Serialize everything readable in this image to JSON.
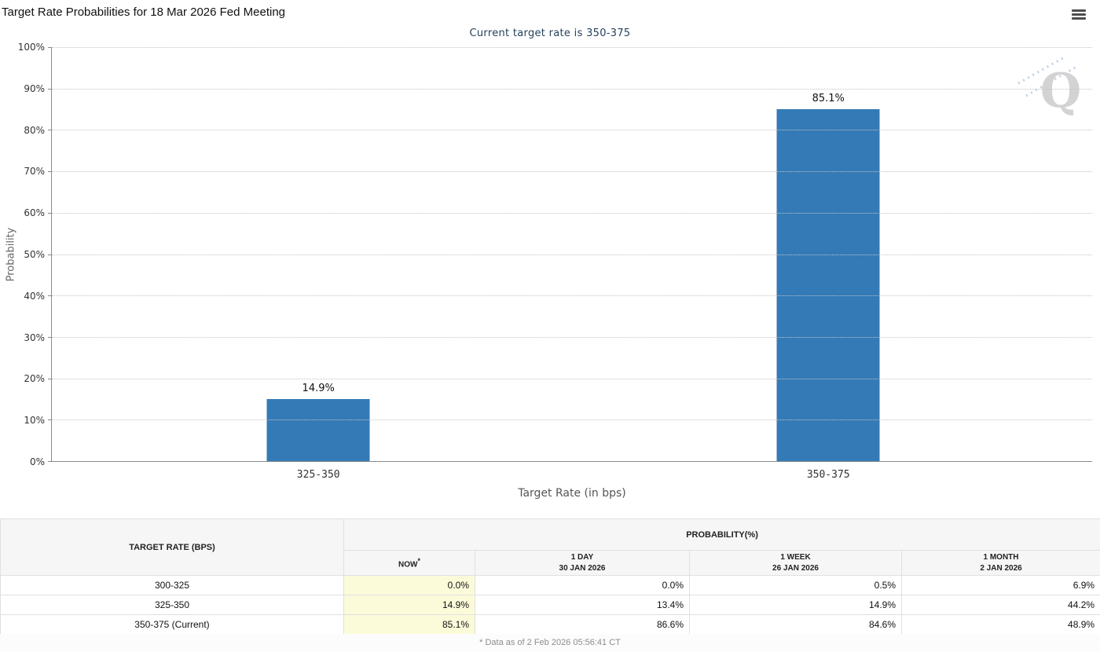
{
  "header": {
    "title": "Target Rate Probabilities for 18 Mar 2026 Fed Meeting"
  },
  "icons": {
    "menu": "hamburger-menu-icon",
    "watermark": "quikstrike-q-logo"
  },
  "chart_data": {
    "type": "bar",
    "title": "Target Rate Probabilities for 18 Mar 2026 Fed Meeting",
    "subtitle": "Current target rate is 350-375",
    "categories": [
      "325-350",
      "350-375"
    ],
    "values": [
      14.9,
      85.1
    ],
    "value_labels": [
      "14.9%",
      "85.1%"
    ],
    "xlabel": "Target Rate (in bps)",
    "ylabel": "Probability",
    "ylim": [
      0,
      100
    ],
    "ytick_labels": [
      "100%",
      "90%",
      "80%",
      "70%",
      "60%",
      "50%",
      "40%",
      "30%",
      "20%",
      "10%",
      "0%"
    ],
    "grid": "horizontal-dotted",
    "legend": "none",
    "bar_color": "#337ab7"
  },
  "colors": {
    "bar": "#337ab7",
    "row_divider_blue": "#4a7ebc",
    "now_column_bg": "#fbfbda",
    "header_bg": "#f6f6f6",
    "subtitle_text": "#26415e"
  },
  "table": {
    "col1_header": "TARGET RATE (BPS)",
    "group_header": "PROBABILITY(%)",
    "subheaders": [
      {
        "label": "NOW",
        "asterisk": "*",
        "date": ""
      },
      {
        "label": "1 DAY",
        "date": "30 JAN 2026"
      },
      {
        "label": "1 WEEK",
        "date": "26 JAN 2026"
      },
      {
        "label": "1 MONTH",
        "date": "2 JAN 2026"
      }
    ],
    "rows": [
      {
        "rate": "300-325",
        "now": "0.0%",
        "day": "0.0%",
        "week": "0.5%",
        "month": "6.9%"
      },
      {
        "rate": "325-350",
        "now": "14.9%",
        "day": "13.4%",
        "week": "14.9%",
        "month": "44.2%"
      },
      {
        "rate": "350-375 (Current)",
        "now": "85.1%",
        "day": "86.6%",
        "week": "84.6%",
        "month": "48.9%"
      }
    ]
  },
  "footer": {
    "note": "* Data as of 2 Feb 2026 05:56:41 CT"
  }
}
